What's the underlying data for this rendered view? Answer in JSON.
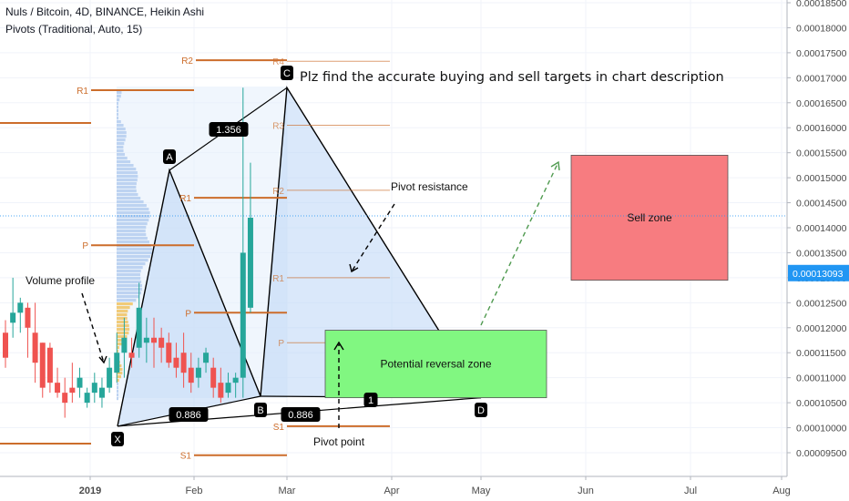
{
  "header": {
    "title": "Nuls / Bitcoin, 4D, BINANCE, Heikin Ashi",
    "indicator": "Pivots (Traditional, Auto, 15)"
  },
  "chart_data": {
    "type": "candlestick",
    "price_axis": {
      "min": 9e-05,
      "max": 0.000185,
      "ticks": [
        "0.00018500",
        "0.00018000",
        "0.00017500",
        "0.00017000",
        "0.00016500",
        "0.00016000",
        "0.00015500",
        "0.00015000",
        "0.00014500",
        "0.00014000",
        "0.00013500",
        "0.00013000",
        "0.00012500",
        "0.00012000",
        "0.00011500",
        "0.00011000",
        "0.00010500",
        "0.00010000",
        "0.00009500"
      ],
      "current_price_label": "0.00013093",
      "current_price": 0.00013093
    },
    "time_axis": {
      "labels": [
        "2019",
        "Feb",
        "Mar",
        "Apr",
        "May",
        "Jun",
        "Jul",
        "Aug"
      ]
    },
    "candles": [
      {
        "o": 0.000119,
        "c": 0.000114,
        "h": 0.0001215,
        "l": 0.000112
      },
      {
        "o": 0.000121,
        "c": 0.000123,
        "h": 0.00013,
        "l": 0.000118
      },
      {
        "o": 0.000123,
        "c": 0.000125,
        "h": 0.000126,
        "l": 0.000119
      },
      {
        "o": 0.000124,
        "c": 0.00012,
        "h": 0.000125,
        "l": 0.000114
      },
      {
        "o": 0.000119,
        "c": 0.000113,
        "h": 0.000125,
        "l": 0.000109
      },
      {
        "o": 0.000117,
        "c": 0.000108,
        "h": 0.000117,
        "l": 0.000106
      },
      {
        "o": 0.000116,
        "c": 0.000109,
        "h": 0.000117,
        "l": 0.000107
      },
      {
        "o": 0.000109,
        "c": 0.000107,
        "h": 0.000112,
        "l": 0.000106
      },
      {
        "o": 0.000107,
        "c": 0.000105,
        "h": 0.00011,
        "l": 0.000102
      },
      {
        "o": 0.000108,
        "c": 0.000107,
        "h": 0.000113,
        "l": 0.000105
      },
      {
        "o": 0.000108,
        "c": 0.00011,
        "h": 0.000112,
        "l": 0.000106
      },
      {
        "o": 0.000105,
        "c": 0.000107,
        "h": 0.000108,
        "l": 0.000104
      },
      {
        "o": 0.000107,
        "c": 0.000109,
        "h": 0.000111,
        "l": 0.000105
      },
      {
        "o": 0.000106,
        "c": 0.000108,
        "h": 0.00011,
        "l": 0.000104
      },
      {
        "o": 0.000108,
        "c": 0.000112,
        "h": 0.000114,
        "l": 0.000107
      },
      {
        "o": 0.000111,
        "c": 0.000115,
        "h": 0.000119,
        "l": 0.000109
      },
      {
        "o": 0.000115,
        "c": 0.000118,
        "h": 0.000122,
        "l": 0.00011
      },
      {
        "o": 0.000115,
        "c": 0.000114,
        "h": 0.000118,
        "l": 0.000112
      },
      {
        "o": 0.000116,
        "c": 0.000124,
        "h": 0.000129,
        "l": 0.000114
      },
      {
        "o": 0.000117,
        "c": 0.000118,
        "h": 0.000122,
        "l": 0.000113
      },
      {
        "o": 0.000118,
        "c": 0.000117,
        "h": 0.000122,
        "l": 0.000112
      },
      {
        "o": 0.000118,
        "c": 0.000116,
        "h": 0.00012,
        "l": 0.000113
      },
      {
        "o": 0.000117,
        "c": 0.000113,
        "h": 0.000119,
        "l": 0.000112
      },
      {
        "o": 0.000114,
        "c": 0.000112,
        "h": 0.000117,
        "l": 0.00011
      },
      {
        "o": 0.000115,
        "c": 0.000111,
        "h": 0.000119,
        "l": 0.000108
      },
      {
        "o": 0.000112,
        "c": 0.000109,
        "h": 0.000115,
        "l": 0.000107
      },
      {
        "o": 0.00011,
        "c": 0.000112,
        "h": 0.000114,
        "l": 0.000108
      },
      {
        "o": 0.000113,
        "c": 0.000115,
        "h": 0.000116,
        "l": 0.000111
      },
      {
        "o": 0.000112,
        "c": 0.000108,
        "h": 0.000114,
        "l": 0.000106
      },
      {
        "o": 0.000109,
        "c": 0.000106,
        "h": 0.000112,
        "l": 0.000105
      },
      {
        "o": 0.000107,
        "c": 0.000109,
        "h": 0.000111,
        "l": 0.000106
      },
      {
        "o": 0.000109,
        "c": 0.00011,
        "h": 0.000111,
        "l": 0.000106
      },
      {
        "o": 0.00011,
        "c": 0.000135,
        "h": 0.000168,
        "l": 0.000106
      },
      {
        "o": 0.000124,
        "c": 0.000142,
        "h": 0.000153,
        "l": 0.000123
      }
    ],
    "harmonic_pattern": {
      "points": [
        {
          "label": "X",
          "price": 0.0001003
        },
        {
          "label": "A",
          "price": 0.0001515
        },
        {
          "label": "B",
          "price": 0.0001063
        },
        {
          "label": "C",
          "price": 0.000168
        },
        {
          "label": "D",
          "price": 0.000106
        }
      ],
      "ratios": [
        "1.356",
        "0.886",
        "0.886",
        "1"
      ]
    },
    "pivot_levels": [
      {
        "label": "R2",
        "price": 0.0001735
      },
      {
        "label": "R1",
        "price": 0.0001675
      },
      {
        "label": "R1",
        "price": 0.000146
      },
      {
        "label": "P",
        "price": 0.0001365
      },
      {
        "label": "P",
        "price": 0.000123
      },
      {
        "label": "R4",
        "price": 0.0001733
      },
      {
        "label": "R3",
        "price": 0.0001605
      },
      {
        "label": "R2",
        "price": 0.0001475
      },
      {
        "label": "R1",
        "price": 0.00013
      },
      {
        "label": "P",
        "price": 0.000117
      },
      {
        "label": "S1",
        "price": 0.0001003
      },
      {
        "label": "S1",
        "price": 9.45e-05
      }
    ],
    "zones": [
      {
        "label": "Sell zone",
        "from": 0.0001295,
        "to": 0.0001545,
        "color": "#f77c80"
      },
      {
        "label": "Potential reversal zone",
        "from": 0.000106,
        "to": 0.0001195,
        "color": "#81f781"
      }
    ],
    "annotations": [
      "Plz find the accurate buying and sell targets in chart description",
      "Volume profile",
      "Pivot resistance",
      "Pivot point"
    ]
  },
  "colors": {
    "up": "#26a69a",
    "down": "#ef5350",
    "pivot": "#cc6d2b",
    "pattern_fill": "#bcd6f5",
    "axis_text": "#4a4a4a"
  }
}
